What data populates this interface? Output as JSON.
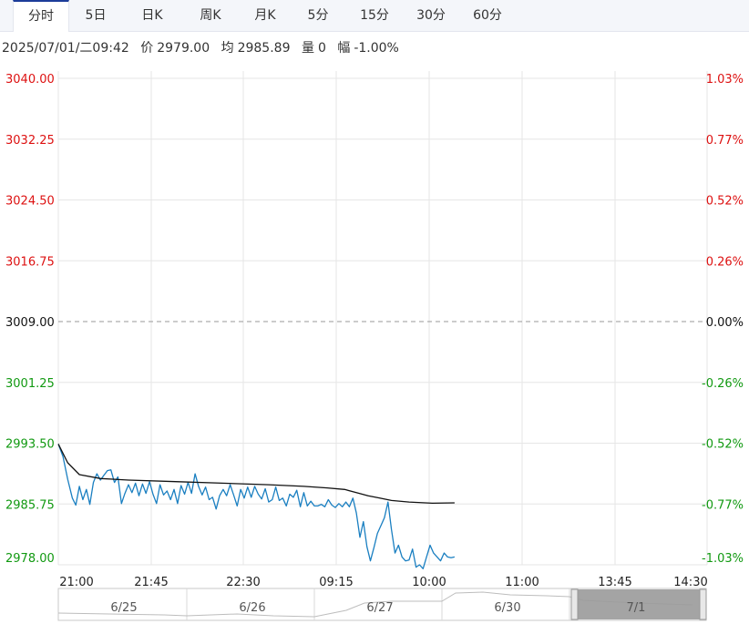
{
  "tabs": {
    "items": [
      "分时",
      "5日",
      "日K",
      "周K",
      "月K",
      "5分",
      "15分",
      "30分",
      "60分"
    ],
    "active_index": 0
  },
  "quote": {
    "datetime": "2025/07/01/二09:42",
    "price_label": "价",
    "price": "2979.00",
    "avg_label": "均",
    "avg": "2985.89",
    "vol_label": "量",
    "vol": "0",
    "chg_label": "幅",
    "chg": "-1.00%"
  },
  "colors": {
    "up": "#dd1111",
    "down": "#119911",
    "price_line": "#1a7fc1",
    "avg_line": "#111111",
    "grid": "#e6e6e6"
  },
  "chart_data": {
    "type": "line",
    "ylim": [
      2978.0,
      3040.0
    ],
    "base_price": 3009.0,
    "y_ticks": [
      "3040.00",
      "3032.25",
      "3024.50",
      "3016.75",
      "3009.00",
      "3001.25",
      "2993.50",
      "2985.75",
      "2978.00"
    ],
    "pct_ticks": [
      "1.03%",
      "0.77%",
      "0.52%",
      "0.26%",
      "0.00%",
      "-0.26%",
      "-0.52%",
      "-0.77%",
      "-1.03%"
    ],
    "x_ticks": [
      "21:00",
      "21:45",
      "22:30",
      "09:15",
      "10:00",
      "11:00",
      "13:45",
      "14:30"
    ],
    "total_slots": 555,
    "series": [
      {
        "role": "price",
        "points": [
          [
            0,
            2993.4
          ],
          [
            4,
            2991.8
          ],
          [
            8,
            2988.9
          ],
          [
            12,
            2986.5
          ],
          [
            15,
            2985.6
          ],
          [
            18,
            2988.0
          ],
          [
            21,
            2986.3
          ],
          [
            24,
            2987.6
          ],
          [
            27,
            2985.7
          ],
          [
            30,
            2988.5
          ],
          [
            33,
            2989.6
          ],
          [
            36,
            2988.8
          ],
          [
            39,
            2989.4
          ],
          [
            42,
            2990.0
          ],
          [
            45,
            2990.1
          ],
          [
            48,
            2988.5
          ],
          [
            51,
            2989.2
          ],
          [
            54,
            2985.8
          ],
          [
            57,
            2987.1
          ],
          [
            60,
            2988.2
          ],
          [
            63,
            2987.2
          ],
          [
            66,
            2988.4
          ],
          [
            69,
            2986.8
          ],
          [
            72,
            2988.3
          ],
          [
            75,
            2987.1
          ],
          [
            78,
            2988.6
          ],
          [
            81,
            2987.0
          ],
          [
            84,
            2985.8
          ],
          [
            87,
            2988.2
          ],
          [
            90,
            2986.9
          ],
          [
            93,
            2987.4
          ],
          [
            96,
            2986.3
          ],
          [
            99,
            2987.6
          ],
          [
            102,
            2985.8
          ],
          [
            105,
            2988.1
          ],
          [
            108,
            2987.0
          ],
          [
            111,
            2988.5
          ],
          [
            114,
            2987.1
          ],
          [
            117,
            2989.6
          ],
          [
            120,
            2988.0
          ],
          [
            123,
            2986.9
          ],
          [
            126,
            2987.9
          ],
          [
            129,
            2986.3
          ],
          [
            132,
            2986.6
          ],
          [
            135,
            2985.1
          ],
          [
            138,
            2986.8
          ],
          [
            141,
            2987.6
          ],
          [
            144,
            2986.8
          ],
          [
            147,
            2988.2
          ],
          [
            150,
            2986.9
          ],
          [
            153,
            2985.5
          ],
          [
            156,
            2987.6
          ],
          [
            159,
            2986.5
          ],
          [
            162,
            2987.9
          ],
          [
            165,
            2986.6
          ],
          [
            168,
            2988.0
          ],
          [
            171,
            2987.0
          ],
          [
            174,
            2986.4
          ],
          [
            177,
            2987.7
          ],
          [
            180,
            2986.0
          ],
          [
            183,
            2986.3
          ],
          [
            186,
            2987.9
          ],
          [
            189,
            2986.2
          ],
          [
            192,
            2986.5
          ],
          [
            195,
            2985.5
          ],
          [
            198,
            2987.0
          ],
          [
            201,
            2986.6
          ],
          [
            204,
            2987.5
          ],
          [
            207,
            2985.4
          ],
          [
            210,
            2987.2
          ],
          [
            213,
            2985.5
          ],
          [
            216,
            2986.1
          ],
          [
            219,
            2985.5
          ],
          [
            222,
            2985.5
          ],
          [
            225,
            2985.7
          ],
          [
            228,
            2985.4
          ],
          [
            231,
            2986.3
          ],
          [
            234,
            2985.6
          ],
          [
            237,
            2985.3
          ],
          [
            240,
            2985.8
          ],
          [
            243,
            2985.4
          ],
          [
            246,
            2986.0
          ],
          [
            249,
            2985.4
          ],
          [
            252,
            2986.5
          ],
          [
            255,
            2984.6
          ],
          [
            258,
            2981.5
          ],
          [
            261,
            2983.5
          ],
          [
            264,
            2980.3
          ],
          [
            267,
            2978.5
          ],
          [
            270,
            2980.2
          ],
          [
            273,
            2982.0
          ],
          [
            276,
            2983.0
          ],
          [
            279,
            2984.0
          ],
          [
            282,
            2986.0
          ],
          [
            285,
            2982.5
          ],
          [
            288,
            2979.5
          ],
          [
            291,
            2980.5
          ],
          [
            294,
            2979.0
          ],
          [
            297,
            2978.5
          ],
          [
            300,
            2978.6
          ],
          [
            303,
            2980.0
          ],
          [
            306,
            2977.7
          ],
          [
            309,
            2978.0
          ],
          [
            312,
            2977.5
          ],
          [
            315,
            2979.0
          ],
          [
            318,
            2980.5
          ],
          [
            321,
            2979.5
          ],
          [
            324,
            2979.0
          ],
          [
            327,
            2978.5
          ],
          [
            330,
            2979.5
          ],
          [
            333,
            2979.0
          ],
          [
            336,
            2978.9
          ],
          [
            339,
            2979.0
          ]
        ]
      },
      {
        "role": "avg",
        "points": [
          [
            0,
            2993.4
          ],
          [
            8,
            2991.0
          ],
          [
            18,
            2989.5
          ],
          [
            36,
            2989.0
          ],
          [
            60,
            2988.8
          ],
          [
            100,
            2988.6
          ],
          [
            140,
            2988.4
          ],
          [
            180,
            2988.2
          ],
          [
            210,
            2988.0
          ],
          [
            230,
            2987.8
          ],
          [
            245,
            2987.6
          ],
          [
            255,
            2987.2
          ],
          [
            265,
            2986.8
          ],
          [
            275,
            2986.5
          ],
          [
            285,
            2986.2
          ],
          [
            300,
            2986.0
          ],
          [
            320,
            2985.85
          ],
          [
            339,
            2985.89
          ]
        ]
      }
    ]
  },
  "navigator": {
    "labels": [
      "6/25",
      "6/26",
      "6/27",
      "6/30",
      "7/1"
    ]
  }
}
